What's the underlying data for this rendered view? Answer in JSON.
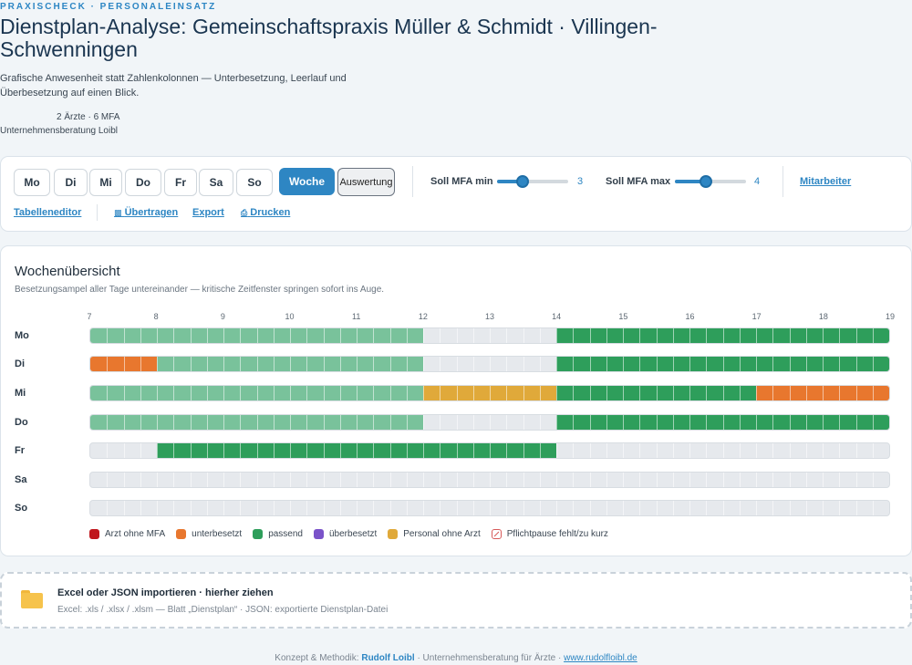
{
  "header": {
    "eyebrow": "PRAXISCHECK · PERSONALEINSATZ",
    "title": "Dienstplan-Analyse: Gemeinschaftspraxis Müller & Schmidt · Villingen-Schwenningen",
    "subtitle": "Grafische Anwesenheit statt Zahlenkolonnen — Unterbesetzung, Leerlauf und Überbesetzung auf einen Blick.",
    "staff_summary": "2 Ärzte · 6 MFA",
    "consultant": "Unternehmensberatung Loibl"
  },
  "toolbar": {
    "day_buttons": [
      "Mo",
      "Di",
      "Mi",
      "Do",
      "Fr",
      "Sa",
      "So"
    ],
    "week_button": "Woche",
    "evaluation_button": "Auswertung",
    "soll_min_label": "Soll MFA min",
    "soll_min_value": "3",
    "soll_min_fraction": 0.33,
    "soll_max_label": "Soll MFA max",
    "soll_max_value": "4",
    "soll_max_fraction": 0.42,
    "staff_link": "Mitarbeiter",
    "table_editor_link": "Tabelleneditor",
    "transfer_link": "Übertragen",
    "export_link": "Export",
    "print_link": "Drucken",
    "transfer_icon": "clipboard-icon",
    "print_icon": "printer-icon"
  },
  "week": {
    "title": "Wochenübersicht",
    "subtitle": "Besetzungsampel aller Tage untereinander — kritische Zeitfenster springen sofort ins Auge.",
    "hours": [
      "7",
      "8",
      "9",
      "10",
      "11",
      "12",
      "13",
      "14",
      "15",
      "16",
      "17",
      "18",
      "19"
    ],
    "hour_start": 7,
    "hour_end": 19,
    "rows": [
      {
        "day": "Mo",
        "segments": [
          {
            "from": 7,
            "to": 12,
            "status": "passend_hell"
          },
          {
            "from": 14,
            "to": 19,
            "status": "passend"
          }
        ]
      },
      {
        "day": "Di",
        "segments": [
          {
            "from": 7,
            "to": 8,
            "status": "unterbesetzt"
          },
          {
            "from": 8,
            "to": 12,
            "status": "passend_hell"
          },
          {
            "from": 14,
            "to": 19,
            "status": "passend"
          }
        ]
      },
      {
        "day": "Mi",
        "segments": [
          {
            "from": 7,
            "to": 12,
            "status": "passend_hell"
          },
          {
            "from": 12,
            "to": 14,
            "status": "personal_ohne_arzt"
          },
          {
            "from": 14,
            "to": 17,
            "status": "passend"
          },
          {
            "from": 17,
            "to": 19,
            "status": "unterbesetzt"
          }
        ]
      },
      {
        "day": "Do",
        "segments": [
          {
            "from": 7,
            "to": 12,
            "status": "passend_hell"
          },
          {
            "from": 14,
            "to": 19,
            "status": "passend"
          }
        ]
      },
      {
        "day": "Fr",
        "segments": [
          {
            "from": 8,
            "to": 14,
            "status": "passend"
          }
        ]
      },
      {
        "day": "Sa",
        "segments": []
      },
      {
        "day": "So",
        "segments": []
      }
    ],
    "legend": [
      {
        "label": "Arzt ohne MFA",
        "color": "#c0161c"
      },
      {
        "label": "unterbesetzt",
        "color": "#e8772e"
      },
      {
        "label": "passend",
        "color": "#2e9e5b"
      },
      {
        "label": "überbesetzt",
        "color": "#7a53c9"
      },
      {
        "label": "Personal ohne Arzt",
        "color": "#e0a93a"
      },
      {
        "label": "Pflichtpause fehlt/zu kurz",
        "color": "#d75a5a"
      }
    ],
    "status_colors": {
      "passend": "#2e9e5b",
      "passend_hell": "#79c29b",
      "unterbesetzt": "#e8772e",
      "personal_ohne_arzt": "#e0a93a",
      "ueberbesetzt": "#7a53c9",
      "arzt_ohne_mfa": "#c0161c"
    }
  },
  "import": {
    "title": "Excel oder JSON importieren · hierher ziehen",
    "subtitle": "Excel: .xls / .xlsx / .xlsm — Blatt „Dienstplan“ · JSON: exportierte Dienstplan-Datei",
    "icon": "folder-icon"
  },
  "footer": {
    "prefix": "Konzept & Methodik:",
    "author": "Rudolf Loibl",
    "middle": "· Unternehmensberatung für Ärzte ·",
    "url": "www.rudolfloibl.de"
  }
}
